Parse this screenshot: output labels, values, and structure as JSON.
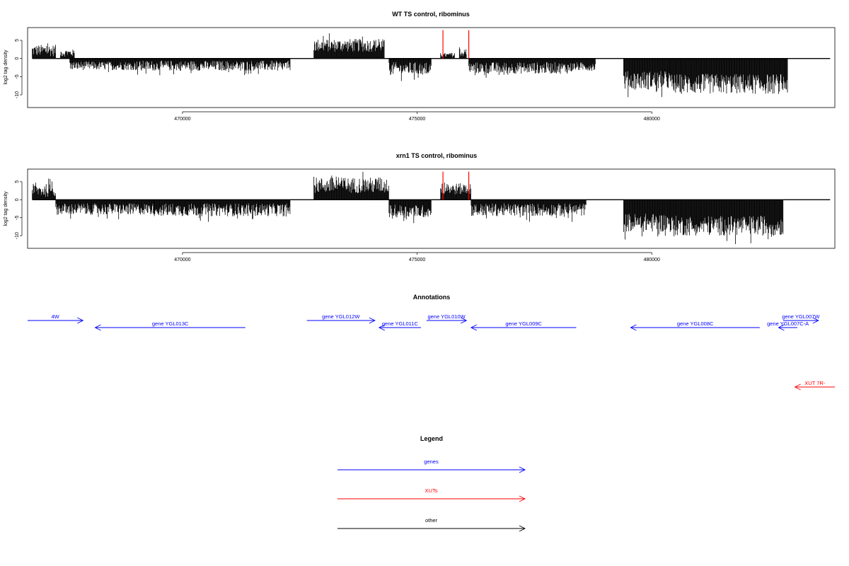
{
  "chart_data": [
    {
      "type": "bar",
      "title": "WT TS control, ribominus",
      "xlabel": "",
      "ylabel": "log2 tag density",
      "xlim": [
        466700,
        483900
      ],
      "ylim": [
        -13.5,
        8.5
      ],
      "x_ticks": [
        470000,
        475000,
        480000
      ],
      "x_tick_labels": [
        "470000",
        "475000",
        "480000"
      ],
      "y_ticks": [
        5,
        0,
        -5,
        -10
      ],
      "y_tick_labels": [
        "5",
        "0",
        "-5",
        "-10"
      ],
      "grid": false,
      "plus_regions": [
        {
          "start": 466800,
          "end": 467300,
          "mean": 2.2,
          "amp": 1.6
        },
        {
          "start": 467400,
          "end": 467700,
          "mean": 1.5,
          "amp": 1.0
        },
        {
          "start": 472800,
          "end": 474300,
          "mean": 3.6,
          "amp": 1.8
        },
        {
          "start": 475500,
          "end": 475800,
          "mean": 0.9,
          "amp": 0.6
        },
        {
          "start": 475900,
          "end": 476050,
          "mean": 1.5,
          "amp": 1.0
        }
      ],
      "minus_regions": [
        {
          "start": 467600,
          "end": 469000,
          "mean": -2.0,
          "amp": 1.2
        },
        {
          "start": 469000,
          "end": 472300,
          "mean": -2.0,
          "amp": 1.4
        },
        {
          "start": 474400,
          "end": 475300,
          "mean": -2.8,
          "amp": 1.8
        },
        {
          "start": 476100,
          "end": 478300,
          "mean": -2.6,
          "amp": 1.6
        },
        {
          "start": 478300,
          "end": 478800,
          "mean": -2.2,
          "amp": 1.2
        },
        {
          "start": 479400,
          "end": 480400,
          "mean": -6.0,
          "amp": 2.6
        },
        {
          "start": 480400,
          "end": 482900,
          "mean": -7.0,
          "amp": 2.8
        }
      ],
      "marker_lines": {
        "color": "#ff0000",
        "x": [
          475550,
          476100
        ],
        "value": 7.8
      }
    },
    {
      "type": "bar",
      "title": "xrn1 TS control, ribominus",
      "xlabel": "",
      "ylabel": "log2 tag density",
      "xlim": [
        466700,
        483900
      ],
      "ylim": [
        -13.5,
        8.5
      ],
      "x_ticks": [
        470000,
        475000,
        480000
      ],
      "x_tick_labels": [
        "470000",
        "475000",
        "480000"
      ],
      "y_ticks": [
        5,
        0,
        -5,
        -10
      ],
      "y_tick_labels": [
        "5",
        "0",
        "-5",
        "-10"
      ],
      "grid": false,
      "plus_regions": [
        {
          "start": 466800,
          "end": 467300,
          "mean": 2.6,
          "amp": 1.8
        },
        {
          "start": 472800,
          "end": 474400,
          "mean": 4.0,
          "amp": 2.2
        },
        {
          "start": 475500,
          "end": 476150,
          "mean": 3.0,
          "amp": 1.6
        }
      ],
      "minus_regions": [
        {
          "start": 467300,
          "end": 469400,
          "mean": -2.6,
          "amp": 1.6
        },
        {
          "start": 469400,
          "end": 472300,
          "mean": -2.8,
          "amp": 1.8
        },
        {
          "start": 474400,
          "end": 475300,
          "mean": -3.2,
          "amp": 1.8
        },
        {
          "start": 476150,
          "end": 478600,
          "mean": -2.8,
          "amp": 1.8
        },
        {
          "start": 479400,
          "end": 480400,
          "mean": -6.4,
          "amp": 2.6
        },
        {
          "start": 480400,
          "end": 482800,
          "mean": -7.2,
          "amp": 2.8
        }
      ],
      "marker_lines": {
        "color": "#ff0000",
        "x": [
          475550,
          476100
        ],
        "value": 7.8
      }
    },
    {
      "type": "other",
      "title": "Annotations",
      "xlim": [
        466700,
        483900
      ],
      "features": [
        {
          "label": "4W",
          "start": 466700,
          "end": 467880,
          "strand": "+",
          "color": "#0000ff",
          "row": 0
        },
        {
          "label": "gene YGL013C",
          "start": 468140,
          "end": 471340,
          "strand": "-",
          "color": "#0000ff",
          "row": 1
        },
        {
          "label": "gene YGL012W",
          "start": 472650,
          "end": 474100,
          "strand": "+",
          "color": "#0000ff",
          "row": 0
        },
        {
          "label": "gene YGL011C",
          "start": 474190,
          "end": 475080,
          "strand": "-",
          "color": "#0000ff",
          "row": 1
        },
        {
          "label": "gene YGL010W",
          "start": 475200,
          "end": 476050,
          "strand": "+",
          "color": "#0000ff",
          "row": 0
        },
        {
          "label": "gene YGL009C",
          "start": 476150,
          "end": 478390,
          "strand": "-",
          "color": "#0000ff",
          "row": 1
        },
        {
          "label": "gene YGL008C",
          "start": 479550,
          "end": 482300,
          "strand": "-",
          "color": "#0000ff",
          "row": 1
        },
        {
          "label": "gene YGL007C-A",
          "start": 482700,
          "end": 483100,
          "strand": "-",
          "color": "#0000ff",
          "row": 1
        },
        {
          "label": "gene YGL007W",
          "start": 482800,
          "end": 483550,
          "strand": "+",
          "color": "#0000ff",
          "row": 0
        },
        {
          "label": "XUT 7R-",
          "start": 483050,
          "end": 483900,
          "strand": "-",
          "color": "#ff0000",
          "row": 2
        }
      ]
    },
    {
      "type": "other",
      "title": "Legend",
      "entries": [
        {
          "label": "genes",
          "color": "#0000ff"
        },
        {
          "label": "XUTs",
          "color": "#ff0000"
        },
        {
          "label": "other",
          "color": "#000000"
        }
      ]
    }
  ]
}
